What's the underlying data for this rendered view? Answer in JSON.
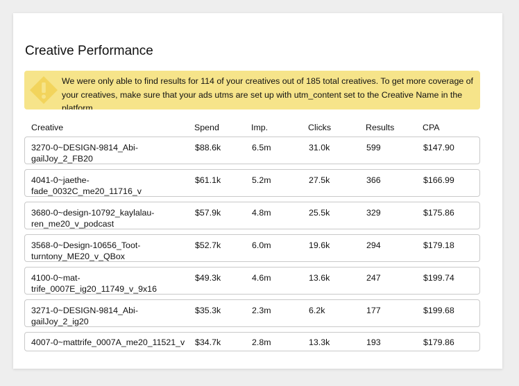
{
  "title": "Creative Performance",
  "alert": {
    "icon": "warning-icon",
    "color": "#f6e48a",
    "text": "We were only able to find results for 114 of your creatives out of 185 total creatives. To get more coverage of your creatives, make sure that your ads utms are set up with utm_content set to the Creative Name in the platform."
  },
  "table": {
    "headers": {
      "creative": "Creative",
      "spend": "Spend",
      "imp": "Imp.",
      "clicks": "Clicks",
      "results": "Results",
      "cpa": "CPA"
    },
    "rows": [
      {
        "creative_line1": "3270-0~DESIGN-9814_Abi-",
        "creative_line2": "gailJoy_2_FB20",
        "spend": "$88.6k",
        "imp": "6.5m",
        "clicks": "31.0k",
        "results": "599",
        "cpa": "$147.90"
      },
      {
        "creative_line1": "4041-0~jaethe-",
        "creative_line2": "fade_0032C_me20_11716_v",
        "spend": "$61.1k",
        "imp": "5.2m",
        "clicks": "27.5k",
        "results": "366",
        "cpa": "$166.99"
      },
      {
        "creative_line1": "3680-0~design-10792_kaylalau-",
        "creative_line2": "ren_me20_v_podcast",
        "spend": "$57.9k",
        "imp": "4.8m",
        "clicks": "25.5k",
        "results": "329",
        "cpa": "$175.86"
      },
      {
        "creative_line1": "3568-0~Design-10656_Toot-",
        "creative_line2": "turntony_ME20_v_QBox",
        "spend": "$52.7k",
        "imp": "6.0m",
        "clicks": "19.6k",
        "results": "294",
        "cpa": "$179.18"
      },
      {
        "creative_line1": "4100-0~mat-",
        "creative_line2": "trife_0007E_ig20_11749_v_9x16",
        "spend": "$49.3k",
        "imp": "4.6m",
        "clicks": "13.6k",
        "results": "247",
        "cpa": "$199.74"
      },
      {
        "creative_line1": "3271-0~DESIGN-9814_Abi-",
        "creative_line2": "gailJoy_2_ig20",
        "spend": "$35.3k",
        "imp": "2.3m",
        "clicks": "6.2k",
        "results": "177",
        "cpa": "$199.68"
      },
      {
        "creative_line1": "4007-0~mattrife_0007A_me20_11521_v",
        "creative_line2": "",
        "spend": "$34.7k",
        "imp": "2.8m",
        "clicks": "13.3k",
        "results": "193",
        "cpa": "$179.86"
      }
    ]
  }
}
